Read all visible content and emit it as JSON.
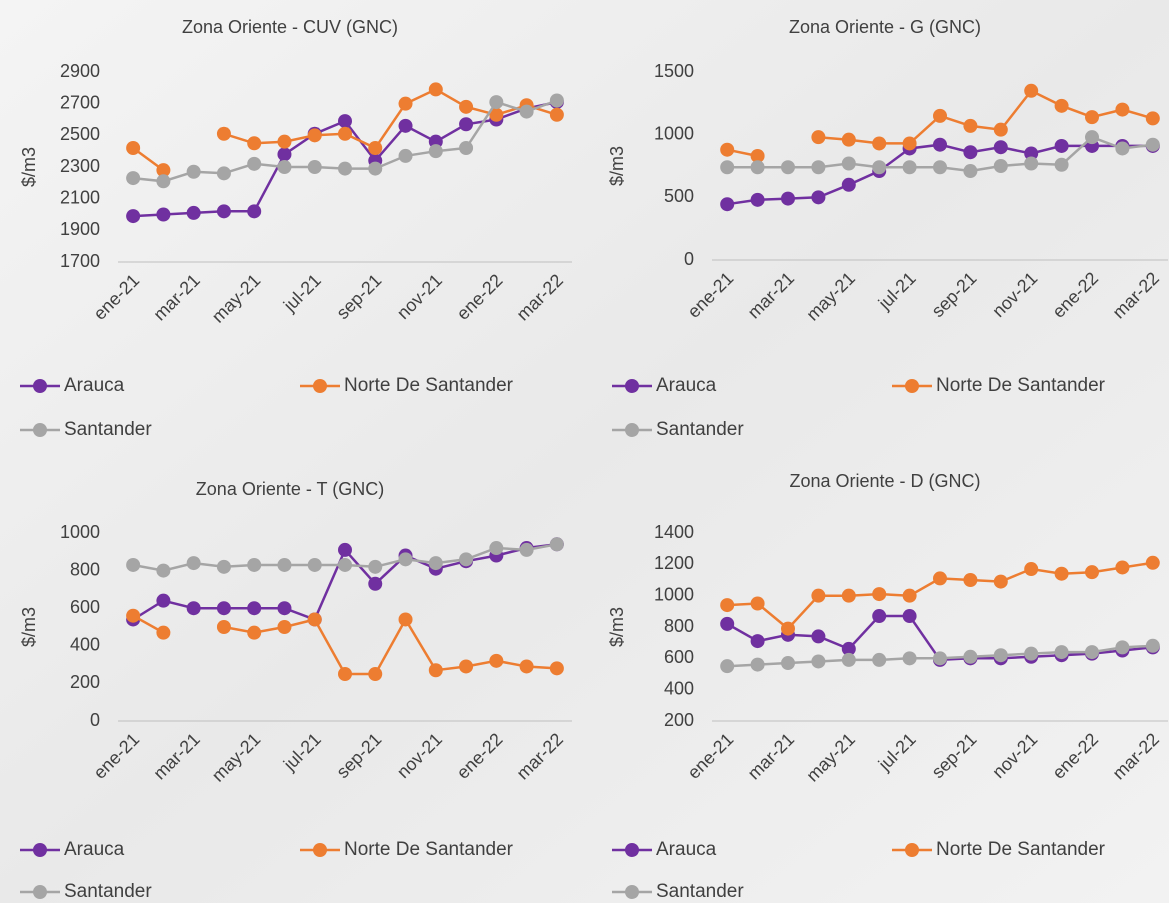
{
  "chart_data": [
    {
      "type": "line",
      "title": "Zona Oriente - CUV (GNC)",
      "y_label": "$/m3",
      "categories": [
        "ene-21",
        null,
        "mar-21",
        null,
        "may-21",
        null,
        "jul-21",
        null,
        "sep-21",
        null,
        "nov-21",
        null,
        "ene-22",
        null,
        "mar-22"
      ],
      "series": [
        {
          "name": "Arauca",
          "color": "#7030a0",
          "values": [
            1990,
            2000,
            2010,
            2020,
            2020,
            2380,
            2510,
            2590,
            2340,
            2560,
            2460,
            2570,
            2600,
            2670,
            2710
          ]
        },
        {
          "name": "Norte De Santander",
          "color": "#ed7d31",
          "values": [
            2420,
            2280,
            null,
            2510,
            2450,
            2460,
            2500,
            2510,
            2420,
            2700,
            2790,
            2680,
            2630,
            2690,
            2630
          ]
        },
        {
          "name": "Santander",
          "color": "#a5a5a5",
          "values": [
            2230,
            2210,
            2270,
            2260,
            2320,
            2300,
            2300,
            2290,
            2290,
            2370,
            2400,
            2420,
            2710,
            2650,
            2720
          ]
        }
      ],
      "ylim": [
        1700,
        2900
      ],
      "yticks": [
        1700,
        1900,
        2100,
        2300,
        2500,
        2700,
        2900
      ]
    },
    {
      "type": "line",
      "title": "Zona Oriente - G (GNC)",
      "y_label": "$/m3",
      "categories": [
        "ene-21",
        null,
        "mar-21",
        null,
        "may-21",
        null,
        "jul-21",
        null,
        "sep-21",
        null,
        "nov-21",
        null,
        "ene-22",
        null,
        "mar-22"
      ],
      "series": [
        {
          "name": "Arauca",
          "color": "#7030a0",
          "values": [
            445,
            480,
            490,
            500,
            600,
            710,
            890,
            920,
            860,
            900,
            850,
            910,
            910,
            910,
            910
          ]
        },
        {
          "name": "Norte De Santander",
          "color": "#ed7d31",
          "values": [
            880,
            830,
            null,
            980,
            960,
            930,
            930,
            1150,
            1070,
            1040,
            1350,
            1230,
            1140,
            1200,
            1130
          ]
        },
        {
          "name": "Santander",
          "color": "#a5a5a5",
          "values": [
            740,
            740,
            740,
            740,
            770,
            740,
            740,
            740,
            710,
            750,
            770,
            760,
            980,
            890,
            920
          ]
        }
      ],
      "ylim": [
        0,
        1500
      ],
      "yticks": [
        0,
        500,
        1000,
        1500
      ]
    },
    {
      "type": "line",
      "title": "Zona Oriente - T (GNC)",
      "y_label": "$/m3",
      "categories": [
        "ene-21",
        null,
        "mar-21",
        null,
        "may-21",
        null,
        "jul-21",
        null,
        "sep-21",
        null,
        "nov-21",
        null,
        "ene-22",
        null,
        "mar-22"
      ],
      "series": [
        {
          "name": "Arauca",
          "color": "#7030a0",
          "values": [
            540,
            640,
            600,
            600,
            600,
            600,
            540,
            910,
            730,
            880,
            810,
            850,
            880,
            920,
            940
          ]
        },
        {
          "name": "Norte De Santander",
          "color": "#ed7d31",
          "values": [
            560,
            470,
            null,
            500,
            470,
            500,
            540,
            250,
            250,
            540,
            270,
            290,
            320,
            290,
            280
          ]
        },
        {
          "name": "Santander",
          "color": "#a5a5a5",
          "values": [
            830,
            800,
            840,
            820,
            830,
            830,
            830,
            830,
            820,
            860,
            840,
            860,
            920,
            910,
            940
          ]
        }
      ],
      "ylim": [
        0,
        1000
      ],
      "yticks": [
        0,
        200,
        400,
        600,
        800,
        1000
      ]
    },
    {
      "type": "line",
      "title": "Zona Oriente - D (GNC)",
      "y_label": "$/m3",
      "categories": [
        "ene-21",
        null,
        "mar-21",
        null,
        "may-21",
        null,
        "jul-21",
        null,
        "sep-21",
        null,
        "nov-21",
        null,
        "ene-22",
        null,
        "mar-22"
      ],
      "series": [
        {
          "name": "Arauca",
          "color": "#7030a0",
          "values": [
            820,
            710,
            750,
            740,
            660,
            870,
            870,
            590,
            600,
            600,
            610,
            620,
            630,
            650,
            670
          ]
        },
        {
          "name": "Norte De Santander",
          "color": "#ed7d31",
          "values": [
            940,
            950,
            790,
            1000,
            1000,
            1010,
            1000,
            1110,
            1100,
            1090,
            1170,
            1140,
            1150,
            1180,
            1210
          ]
        },
        {
          "name": "Santander",
          "color": "#a5a5a5",
          "values": [
            550,
            560,
            570,
            580,
            590,
            590,
            600,
            600,
            610,
            620,
            630,
            640,
            640,
            670,
            680
          ]
        }
      ],
      "ylim": [
        200,
        1400
      ],
      "yticks": [
        200,
        400,
        600,
        800,
        1000,
        1200,
        1400
      ]
    }
  ]
}
